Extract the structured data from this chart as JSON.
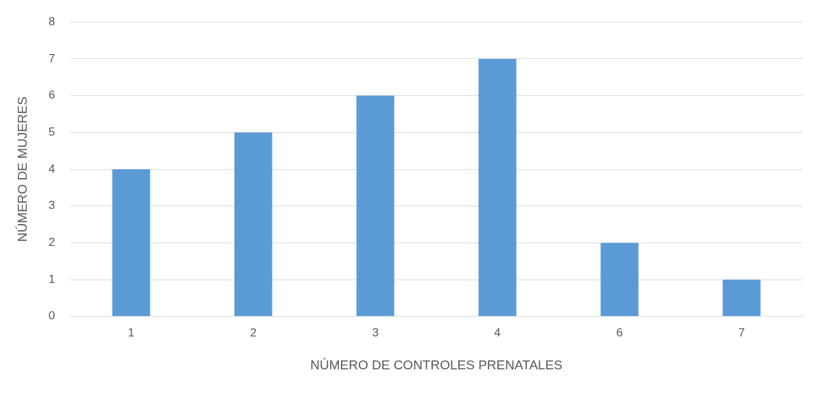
{
  "chart_data": {
    "type": "bar",
    "xlabel": "NÚMERO DE CONTROLES PRENATALES",
    "ylabel": "NÚMERO DE MUJERES",
    "categories": [
      "1",
      "2",
      "3",
      "4",
      "6",
      "7"
    ],
    "values": [
      4,
      5,
      6,
      7,
      2,
      1
    ],
    "color": "#5b9bd5",
    "ylim": [
      0,
      8
    ],
    "yticks": [
      0,
      1,
      2,
      3,
      4,
      5,
      6,
      7,
      8
    ],
    "grid": "y",
    "legend": false
  }
}
